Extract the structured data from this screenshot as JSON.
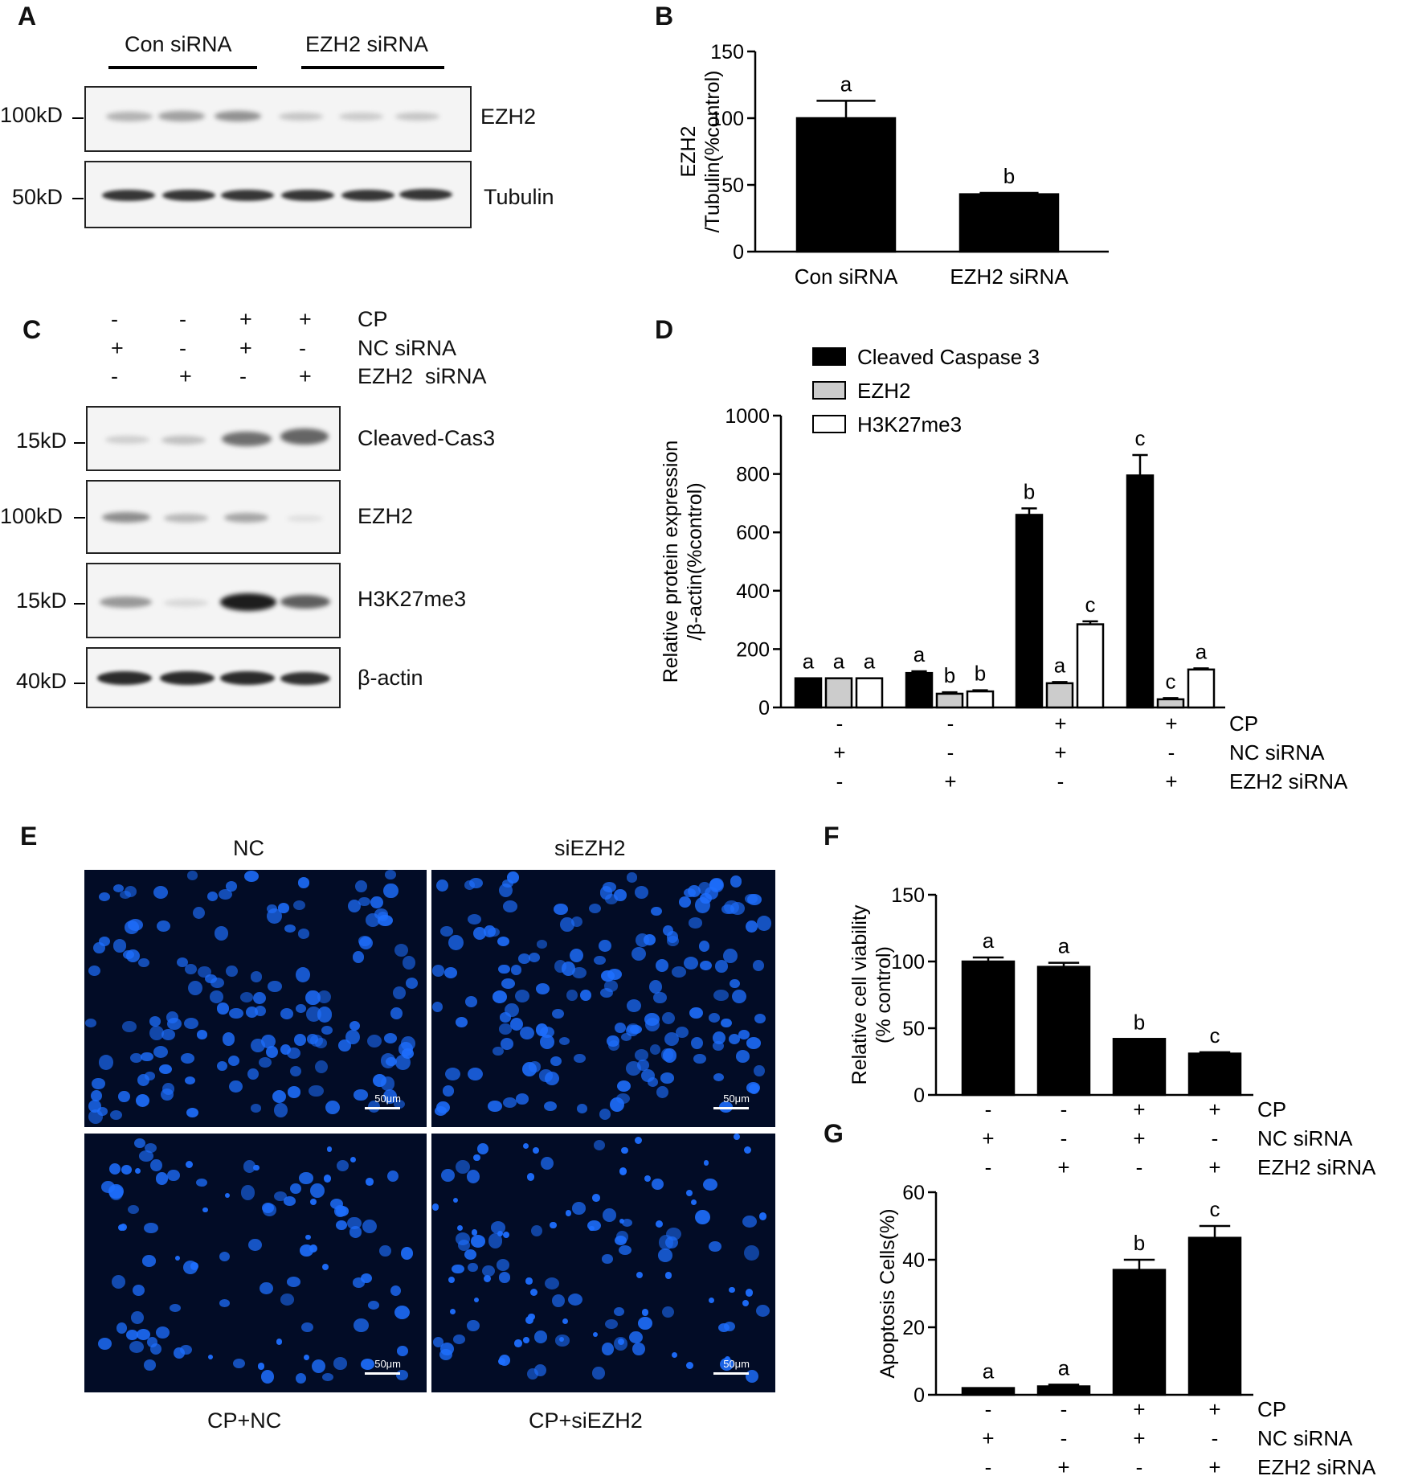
{
  "panels": {
    "A": {
      "label": "A",
      "groups": [
        "Con siRNA",
        "EZH2 siRNA"
      ],
      "markers": [
        "100kD",
        "50kD"
      ],
      "proteins": [
        "EZH2",
        "Tubulin"
      ]
    },
    "C": {
      "label": "C",
      "conditions": {
        "labels": [
          "CP",
          "NC siRNA",
          "EZH2  siRNA"
        ],
        "rows": [
          [
            "-",
            "-",
            "+",
            "+"
          ],
          [
            "+",
            "-",
            "+",
            "-"
          ],
          [
            "-",
            "+",
            "-",
            "+"
          ]
        ]
      },
      "markers": [
        "15kD",
        "100kD",
        "15kD",
        "40kD"
      ],
      "proteins": [
        "Cleaved-Cas3",
        "EZH2",
        "H3K27me3",
        "β-actin"
      ]
    },
    "E": {
      "label": "E",
      "titles": [
        "NC",
        "siEZH2",
        "CP+NC",
        "CP+siEZH2"
      ],
      "scale_bar": "50μm",
      "nuclei_color": "#1e6fff"
    }
  },
  "chart_data": [
    {
      "panel": "B",
      "type": "bar",
      "categories": [
        "Con siRNA",
        "EZH2 siRNA"
      ],
      "values": [
        100,
        43
      ],
      "errors": [
        13,
        1
      ],
      "sig_labels": [
        "a",
        "b"
      ],
      "ylabel_lines": [
        "EZH2",
        "/Tubulin(%control)"
      ],
      "ylim": [
        0,
        150
      ],
      "yticks": [
        "0",
        "50",
        "100",
        "150"
      ],
      "bar_color": "#000000"
    },
    {
      "panel": "D",
      "type": "bar",
      "series": [
        {
          "name": "Cleaved Caspase 3",
          "color": "#000000",
          "values": [
            100,
            118,
            660,
            795
          ],
          "errors": [
            0,
            6,
            22,
            70
          ],
          "sig": [
            "a",
            "a",
            "b",
            "c"
          ]
        },
        {
          "name": "EZH2",
          "color": "#cccccc",
          "values": [
            100,
            47,
            83,
            28
          ],
          "errors": [
            0,
            5,
            4,
            4
          ],
          "sig": [
            "a",
            "b",
            "a",
            "c"
          ]
        },
        {
          "name": "H3K27me3",
          "color": "#ffffff",
          "values": [
            100,
            55,
            285,
            130
          ],
          "errors": [
            0,
            4,
            10,
            4
          ],
          "sig": [
            "a",
            "b",
            "c",
            "a"
          ]
        }
      ],
      "ylabel_lines": [
        "Relative protein expression",
        "/β-actin(%control)"
      ],
      "ylim": [
        0,
        1000
      ],
      "yticks": [
        "0",
        "200",
        "400",
        "600",
        "800",
        "1000"
      ],
      "conditions": {
        "labels": [
          "CP",
          "NC siRNA",
          "EZH2  siRNA"
        ],
        "rows": [
          [
            "-",
            "-",
            "+",
            "+"
          ],
          [
            "+",
            "-",
            "+",
            "-"
          ],
          [
            "-",
            "+",
            "-",
            "+"
          ]
        ]
      }
    },
    {
      "panel": "F",
      "type": "bar",
      "values": [
        100,
        96,
        42,
        31
      ],
      "errors": [
        3,
        3,
        0,
        1
      ],
      "sig_labels": [
        "a",
        "a",
        "b",
        "c"
      ],
      "ylabel_lines": [
        "Relative cell viability",
        "(% control)"
      ],
      "ylim": [
        0,
        150
      ],
      "yticks": [
        "0",
        "50",
        "100",
        "150"
      ],
      "bar_color": "#000000",
      "conditions": {
        "labels": [
          "CP",
          "NC siRNA",
          "EZH2  siRNA"
        ],
        "rows": [
          [
            "-",
            "-",
            "+",
            "+"
          ],
          [
            "+",
            "-",
            "+",
            "-"
          ],
          [
            "-",
            "+",
            "-",
            "+"
          ]
        ]
      }
    },
    {
      "panel": "G",
      "type": "bar",
      "values": [
        2,
        2.5,
        37,
        46.5
      ],
      "errors": [
        0,
        0.5,
        3,
        3.5
      ],
      "sig_labels": [
        "a",
        "a",
        "b",
        "c"
      ],
      "ylabel_lines": [
        "Apoptosis Cells(%)"
      ],
      "ylim": [
        0,
        60
      ],
      "yticks": [
        "0",
        "20",
        "40",
        "60"
      ],
      "bar_color": "#000000",
      "conditions": {
        "labels": [
          "CP",
          "NC siRNA",
          "EZH2  siRNA"
        ],
        "rows": [
          [
            "-",
            "-",
            "+",
            "+"
          ],
          [
            "+",
            "-",
            "+",
            "-"
          ],
          [
            "-",
            "+",
            "-",
            "+"
          ]
        ]
      }
    }
  ],
  "chart_labels": [
    "B",
    "D",
    "F",
    "G"
  ]
}
